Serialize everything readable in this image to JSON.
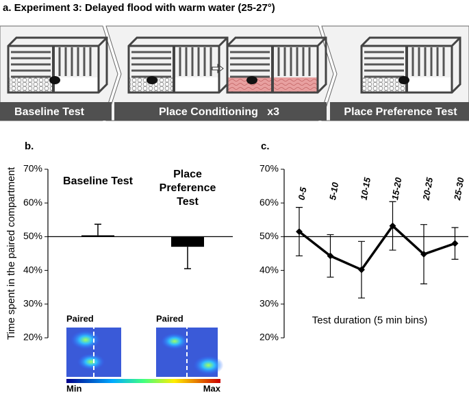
{
  "title": "a. Experiment 3: Delayed flood with warm water (25-27°)",
  "stages": [
    "Baseline Test",
    "Place Conditioning   x3",
    "Place Preference Test"
  ],
  "chart_data": [
    {
      "type": "bar",
      "panel": "b.",
      "y_label": "Time spent in the paired compartment",
      "categories": [
        "Baseline Test",
        "Place Preference Test"
      ],
      "values": [
        50.4,
        47
      ],
      "errors": [
        3.3,
        6.5
      ],
      "color": "#000000",
      "baseline": 50,
      "ylim": [
        20,
        70
      ],
      "yticks": [
        {
          "value": 20,
          "label": "20%"
        },
        {
          "value": 30,
          "label": "30%"
        },
        {
          "value": 40,
          "label": "40%"
        },
        {
          "value": 50,
          "label": "50%"
        },
        {
          "value": 60,
          "label": "60%"
        },
        {
          "value": 70,
          "label": "70%"
        }
      ],
      "heatmap_labels": [
        "Paired",
        "Paired"
      ],
      "colorbar_labels": [
        "Min",
        "Max"
      ]
    },
    {
      "type": "line",
      "panel": "c.",
      "x_label": "Test duration (5 min bins)",
      "categories": [
        "0-5",
        "5-10",
        "10-15",
        "15-20",
        "20-25",
        "25-30"
      ],
      "values": [
        51.5,
        44.3,
        40.2,
        53.2,
        44.8,
        48
      ],
      "errors": [
        7.2,
        6.3,
        8.4,
        7.2,
        8.8,
        4.7
      ],
      "color": "#000000",
      "baseline": 50,
      "ylim": [
        20,
        70
      ],
      "yticks": [
        {
          "value": 20,
          "label": "20%"
        },
        {
          "value": 30,
          "label": "30%"
        },
        {
          "value": 40,
          "label": "40%"
        },
        {
          "value": 50,
          "label": "50%"
        },
        {
          "value": 60,
          "label": "60%"
        },
        {
          "value": 70,
          "label": "70%"
        }
      ]
    }
  ]
}
